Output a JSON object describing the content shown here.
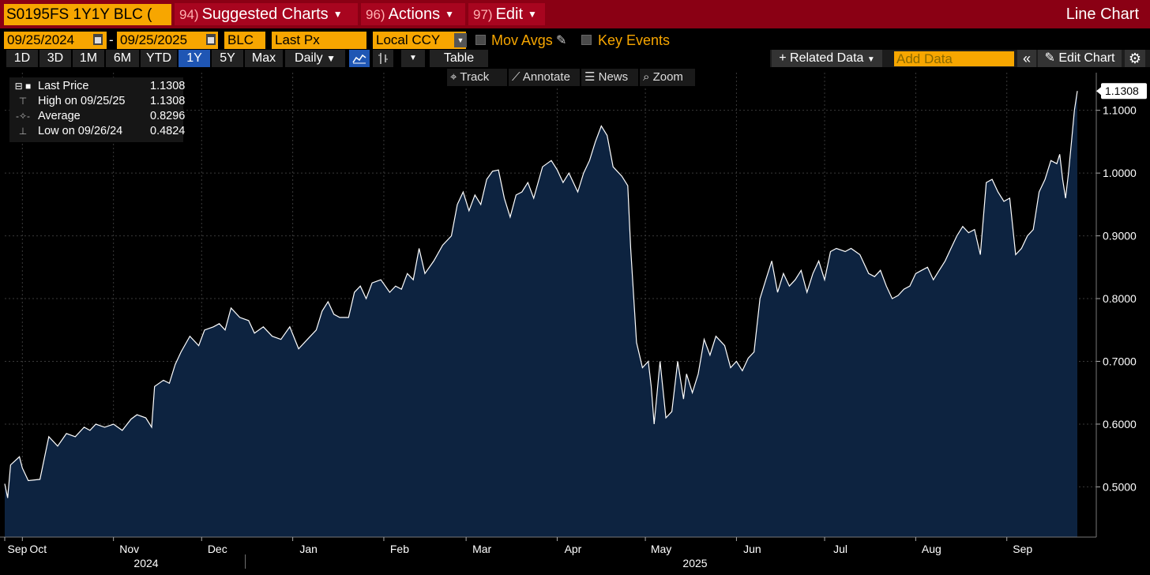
{
  "header": {
    "ticker": "S0195FS 1Y1Y BLC (",
    "menus": [
      {
        "num": "94)",
        "label": "Suggested Charts"
      },
      {
        "num": "96)",
        "label": "Actions"
      },
      {
        "num": "97)",
        "label": "Edit"
      }
    ],
    "chart_kind": "Line Chart"
  },
  "controls": {
    "start_date": "09/25/2024",
    "end_date": "09/25/2025",
    "dash": "-",
    "source": "BLC",
    "field": "Last Px",
    "currency": "Local CCY",
    "mov_avgs": "Mov Avgs",
    "key_events": "Key Events",
    "ranges": [
      "1D",
      "3D",
      "1M",
      "6M",
      "YTD",
      "1Y",
      "5Y",
      "Max"
    ],
    "active_range": "1Y",
    "frequency": "Daily",
    "table": "Table",
    "related_data": "Related Data",
    "add_data_placeholder": "Add Data",
    "edit_chart": "Edit Chart"
  },
  "subtools": {
    "track": "Track",
    "annotate": "Annotate",
    "news": "News",
    "zoom": "Zoom"
  },
  "legend": {
    "last_label": "Last Price",
    "last_value": "1.1308",
    "high_label": "High on 09/25/25",
    "high_value": "1.1308",
    "avg_label": "Average",
    "avg_value": "0.8296",
    "low_label": "Low on 09/26/24",
    "low_value": "0.4824"
  },
  "chart_data": {
    "type": "area",
    "series": [
      {
        "name": "Last Price",
        "color": "#ffffff",
        "fill": "#0d2340"
      }
    ],
    "last_value_label": "1.1308",
    "ylim": [
      0.42,
      1.16
    ],
    "yticks": [
      "0.5000",
      "0.6000",
      "0.7000",
      "0.8000",
      "0.9000",
      "1.0000",
      "1.1000"
    ],
    "ytick_values": [
      0.5,
      0.6,
      0.7,
      0.8,
      0.9,
      1.0,
      1.1
    ],
    "xticks": [
      "Sep",
      "Oct",
      "Nov",
      "Dec",
      "Jan",
      "Feb",
      "Mar",
      "Apr",
      "May",
      "Jun",
      "Jul",
      "Aug",
      "Sep"
    ],
    "xtick_dates": [
      "2024-09-25",
      "2024-10-01",
      "2024-11-01",
      "2024-12-01",
      "2025-01-01",
      "2025-02-01",
      "2025-03-01",
      "2025-04-01",
      "2025-05-01",
      "2025-06-01",
      "2025-07-01",
      "2025-08-01",
      "2025-09-01"
    ],
    "years": [
      "2024",
      "2025"
    ],
    "grid": true,
    "points": [
      [
        "2024-09-25",
        0.505
      ],
      [
        "2024-09-26",
        0.4824
      ],
      [
        "2024-09-27",
        0.535
      ],
      [
        "2024-09-30",
        0.548
      ],
      [
        "2024-10-01",
        0.53
      ],
      [
        "2024-10-03",
        0.51
      ],
      [
        "2024-10-07",
        0.512
      ],
      [
        "2024-10-10",
        0.58
      ],
      [
        "2024-10-13",
        0.565
      ],
      [
        "2024-10-16",
        0.585
      ],
      [
        "2024-10-19",
        0.58
      ],
      [
        "2024-10-22",
        0.595
      ],
      [
        "2024-10-24",
        0.59
      ],
      [
        "2024-10-26",
        0.6
      ],
      [
        "2024-10-29",
        0.595
      ],
      [
        "2024-11-01",
        0.6
      ],
      [
        "2024-11-04",
        0.59
      ],
      [
        "2024-11-07",
        0.608
      ],
      [
        "2024-11-09",
        0.615
      ],
      [
        "2024-11-12",
        0.61
      ],
      [
        "2024-11-14",
        0.595
      ],
      [
        "2024-11-15",
        0.66
      ],
      [
        "2024-11-18",
        0.67
      ],
      [
        "2024-11-20",
        0.665
      ],
      [
        "2024-11-22",
        0.695
      ],
      [
        "2024-11-24",
        0.715
      ],
      [
        "2024-11-27",
        0.74
      ],
      [
        "2024-11-30",
        0.725
      ],
      [
        "2024-12-02",
        0.75
      ],
      [
        "2024-12-05",
        0.755
      ],
      [
        "2024-12-07",
        0.76
      ],
      [
        "2024-12-09",
        0.75
      ],
      [
        "2024-12-11",
        0.785
      ],
      [
        "2024-12-14",
        0.77
      ],
      [
        "2024-12-17",
        0.765
      ],
      [
        "2024-12-19",
        0.745
      ],
      [
        "2024-12-22",
        0.755
      ],
      [
        "2024-12-25",
        0.74
      ],
      [
        "2024-12-28",
        0.735
      ],
      [
        "2024-12-31",
        0.755
      ],
      [
        "2025-01-03",
        0.72
      ],
      [
        "2025-01-06",
        0.735
      ],
      [
        "2025-01-09",
        0.75
      ],
      [
        "2025-01-11",
        0.78
      ],
      [
        "2025-01-13",
        0.795
      ],
      [
        "2025-01-15",
        0.775
      ],
      [
        "2025-01-17",
        0.77
      ],
      [
        "2025-01-20",
        0.77
      ],
      [
        "2025-01-22",
        0.81
      ],
      [
        "2025-01-24",
        0.82
      ],
      [
        "2025-01-26",
        0.8
      ],
      [
        "2025-01-28",
        0.825
      ],
      [
        "2025-01-31",
        0.83
      ],
      [
        "2025-02-03",
        0.81
      ],
      [
        "2025-02-05",
        0.82
      ],
      [
        "2025-02-07",
        0.815
      ],
      [
        "2025-02-09",
        0.84
      ],
      [
        "2025-02-11",
        0.83
      ],
      [
        "2025-02-13",
        0.88
      ],
      [
        "2025-02-15",
        0.84
      ],
      [
        "2025-02-18",
        0.86
      ],
      [
        "2025-02-21",
        0.885
      ],
      [
        "2025-02-24",
        0.9
      ],
      [
        "2025-02-26",
        0.95
      ],
      [
        "2025-02-28",
        0.97
      ],
      [
        "2025-03-02",
        0.94
      ],
      [
        "2025-03-04",
        0.965
      ],
      [
        "2025-03-06",
        0.95
      ],
      [
        "2025-03-08",
        0.99
      ],
      [
        "2025-03-10",
        1.003
      ],
      [
        "2025-03-12",
        1.005
      ],
      [
        "2025-03-14",
        0.96
      ],
      [
        "2025-03-16",
        0.93
      ],
      [
        "2025-03-18",
        0.965
      ],
      [
        "2025-03-20",
        0.97
      ],
      [
        "2025-03-22",
        0.985
      ],
      [
        "2025-03-24",
        0.96
      ],
      [
        "2025-03-27",
        1.01
      ],
      [
        "2025-03-30",
        1.02
      ],
      [
        "2025-04-01",
        1.005
      ],
      [
        "2025-04-03",
        0.985
      ],
      [
        "2025-04-05",
        1.0
      ],
      [
        "2025-04-08",
        0.97
      ],
      [
        "2025-04-10",
        1.0
      ],
      [
        "2025-04-12",
        1.02
      ],
      [
        "2025-04-14",
        1.05
      ],
      [
        "2025-04-16",
        1.075
      ],
      [
        "2025-04-18",
        1.06
      ],
      [
        "2025-04-20",
        1.01
      ],
      [
        "2025-04-23",
        0.995
      ],
      [
        "2025-04-25",
        0.98
      ],
      [
        "2025-04-26",
        0.88
      ],
      [
        "2025-04-28",
        0.73
      ],
      [
        "2025-04-30",
        0.69
      ],
      [
        "2025-05-02",
        0.7
      ],
      [
        "2025-05-03",
        0.66
      ],
      [
        "2025-05-04",
        0.6
      ],
      [
        "2025-05-06",
        0.7
      ],
      [
        "2025-05-08",
        0.61
      ],
      [
        "2025-05-10",
        0.62
      ],
      [
        "2025-05-12",
        0.7
      ],
      [
        "2025-05-14",
        0.64
      ],
      [
        "2025-05-15",
        0.68
      ],
      [
        "2025-05-17",
        0.65
      ],
      [
        "2025-05-19",
        0.68
      ],
      [
        "2025-05-21",
        0.735
      ],
      [
        "2025-05-23",
        0.71
      ],
      [
        "2025-05-25",
        0.74
      ],
      [
        "2025-05-28",
        0.725
      ],
      [
        "2025-05-30",
        0.69
      ],
      [
        "2025-06-01",
        0.7
      ],
      [
        "2025-06-03",
        0.685
      ],
      [
        "2025-06-05",
        0.705
      ],
      [
        "2025-06-07",
        0.715
      ],
      [
        "2025-06-09",
        0.8
      ],
      [
        "2025-06-11",
        0.83
      ],
      [
        "2025-06-13",
        0.86
      ],
      [
        "2025-06-15",
        0.81
      ],
      [
        "2025-06-17",
        0.84
      ],
      [
        "2025-06-19",
        0.82
      ],
      [
        "2025-06-21",
        0.83
      ],
      [
        "2025-06-23",
        0.845
      ],
      [
        "2025-06-25",
        0.81
      ],
      [
        "2025-06-27",
        0.84
      ],
      [
        "2025-06-29",
        0.86
      ],
      [
        "2025-07-01",
        0.83
      ],
      [
        "2025-07-03",
        0.875
      ],
      [
        "2025-07-05",
        0.88
      ],
      [
        "2025-07-08",
        0.875
      ],
      [
        "2025-07-10",
        0.88
      ],
      [
        "2025-07-13",
        0.87
      ],
      [
        "2025-07-16",
        0.84
      ],
      [
        "2025-07-18",
        0.835
      ],
      [
        "2025-07-20",
        0.845
      ],
      [
        "2025-07-22",
        0.82
      ],
      [
        "2025-07-24",
        0.8
      ],
      [
        "2025-07-26",
        0.805
      ],
      [
        "2025-07-28",
        0.815
      ],
      [
        "2025-07-30",
        0.82
      ],
      [
        "2025-08-01",
        0.84
      ],
      [
        "2025-08-03",
        0.845
      ],
      [
        "2025-08-05",
        0.85
      ],
      [
        "2025-08-07",
        0.83
      ],
      [
        "2025-08-09",
        0.845
      ],
      [
        "2025-08-11",
        0.86
      ],
      [
        "2025-08-13",
        0.88
      ],
      [
        "2025-08-15",
        0.9
      ],
      [
        "2025-08-17",
        0.915
      ],
      [
        "2025-08-19",
        0.905
      ],
      [
        "2025-08-21",
        0.91
      ],
      [
        "2025-08-23",
        0.87
      ],
      [
        "2025-08-25",
        0.985
      ],
      [
        "2025-08-27",
        0.99
      ],
      [
        "2025-08-29",
        0.97
      ],
      [
        "2025-08-31",
        0.955
      ],
      [
        "2025-09-02",
        0.96
      ],
      [
        "2025-09-04",
        0.87
      ],
      [
        "2025-09-06",
        0.88
      ],
      [
        "2025-09-08",
        0.9
      ],
      [
        "2025-09-10",
        0.91
      ],
      [
        "2025-09-12",
        0.97
      ],
      [
        "2025-09-14",
        0.99
      ],
      [
        "2025-09-16",
        1.02
      ],
      [
        "2025-09-18",
        1.015
      ],
      [
        "2025-09-19",
        1.03
      ],
      [
        "2025-09-20",
        0.99
      ],
      [
        "2025-09-21",
        0.96
      ],
      [
        "2025-09-22",
        1.0
      ],
      [
        "2025-09-23",
        1.05
      ],
      [
        "2025-09-24",
        1.1
      ],
      [
        "2025-09-25",
        1.1308
      ]
    ]
  }
}
